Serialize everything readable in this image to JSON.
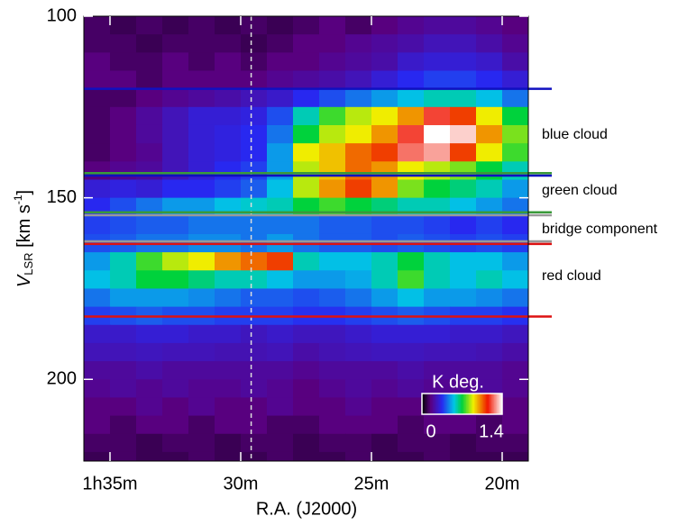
{
  "chart_data": {
    "type": "heatmap",
    "x_label": "R.A. (J2000)",
    "y_label": {
      "main": "V",
      "sub": "LSR",
      "unit": " [km s",
      "sup": "-1",
      "close": "]"
    },
    "xlim": [
      36,
      19
    ],
    "ylim": [
      100,
      222.5
    ],
    "xticks": [
      {
        "value": 35,
        "label": "1h35m"
      },
      {
        "value": 30,
        "label": "30m"
      },
      {
        "value": 25,
        "label": "25m"
      },
      {
        "value": 20,
        "label": "20m"
      }
    ],
    "yticks": [
      100,
      150,
      200
    ],
    "x_bins": [
      36,
      35,
      34,
      33,
      32,
      31,
      30,
      29,
      28,
      27,
      26,
      25,
      24,
      23,
      22,
      21,
      20,
      19
    ],
    "y_bins": [
      100,
      105,
      110,
      115,
      120,
      125,
      130,
      135,
      140,
      145,
      150,
      155,
      160,
      165,
      170,
      175,
      180,
      185,
      190,
      195,
      200,
      205,
      210,
      215,
      220,
      225
    ],
    "z": [
      [
        0.12,
        0.1,
        0.12,
        0.1,
        0.12,
        0.1,
        0.12,
        0.1,
        0.12,
        0.15,
        0.12,
        0.15,
        0.18,
        0.2,
        0.2,
        0.18,
        0.15
      ],
      [
        0.12,
        0.12,
        0.1,
        0.12,
        0.12,
        0.12,
        0.1,
        0.12,
        0.15,
        0.15,
        0.18,
        0.2,
        0.22,
        0.25,
        0.25,
        0.22,
        0.18
      ],
      [
        0.15,
        0.12,
        0.12,
        0.15,
        0.12,
        0.15,
        0.12,
        0.15,
        0.15,
        0.18,
        0.2,
        0.22,
        0.28,
        0.3,
        0.3,
        0.28,
        0.22
      ],
      [
        0.15,
        0.15,
        0.12,
        0.15,
        0.15,
        0.15,
        0.15,
        0.18,
        0.2,
        0.22,
        0.25,
        0.3,
        0.35,
        0.38,
        0.38,
        0.35,
        0.3
      ],
      [
        0.12,
        0.12,
        0.15,
        0.18,
        0.2,
        0.22,
        0.25,
        0.28,
        0.35,
        0.4,
        0.45,
        0.5,
        0.55,
        0.6,
        0.6,
        0.55,
        0.45
      ],
      [
        0.12,
        0.15,
        0.2,
        0.25,
        0.3,
        0.3,
        0.32,
        0.4,
        0.6,
        0.75,
        0.85,
        0.9,
        1.0,
        1.2,
        1.1,
        0.9,
        0.7
      ],
      [
        0.12,
        0.15,
        0.2,
        0.25,
        0.3,
        0.32,
        0.35,
        0.45,
        0.7,
        0.85,
        0.9,
        1.0,
        1.2,
        1.4,
        1.35,
        1.0,
        0.8
      ],
      [
        0.12,
        0.15,
        0.18,
        0.25,
        0.3,
        0.32,
        0.35,
        0.5,
        0.9,
        0.95,
        1.05,
        1.1,
        1.25,
        1.3,
        1.1,
        0.9,
        0.75
      ],
      [
        0.15,
        0.18,
        0.2,
        0.25,
        0.3,
        0.35,
        0.38,
        0.5,
        0.85,
        0.95,
        1.05,
        1.0,
        0.9,
        0.85,
        0.8,
        0.7,
        0.6
      ],
      [
        0.3,
        0.32,
        0.3,
        0.35,
        0.35,
        0.38,
        0.42,
        0.55,
        0.85,
        1.0,
        1.1,
        1.0,
        0.8,
        0.7,
        0.65,
        0.6,
        0.5
      ],
      [
        0.35,
        0.4,
        0.45,
        0.5,
        0.5,
        0.55,
        0.58,
        0.6,
        0.7,
        0.75,
        0.7,
        0.65,
        0.6,
        0.6,
        0.55,
        0.5,
        0.45
      ],
      [
        0.38,
        0.4,
        0.42,
        0.42,
        0.45,
        0.45,
        0.45,
        0.45,
        0.45,
        0.42,
        0.42,
        0.4,
        0.4,
        0.38,
        0.35,
        0.38,
        0.35
      ],
      [
        0.4,
        0.42,
        0.45,
        0.45,
        0.48,
        0.48,
        0.45,
        0.5,
        0.45,
        0.42,
        0.42,
        0.4,
        0.42,
        0.4,
        0.38,
        0.4,
        0.38
      ],
      [
        0.5,
        0.6,
        0.75,
        0.85,
        0.9,
        1.0,
        1.05,
        1.1,
        0.6,
        0.55,
        0.55,
        0.6,
        0.7,
        0.6,
        0.55,
        0.55,
        0.5
      ],
      [
        0.55,
        0.6,
        0.7,
        0.7,
        0.65,
        0.6,
        0.6,
        0.55,
        0.5,
        0.5,
        0.52,
        0.6,
        0.75,
        0.6,
        0.55,
        0.6,
        0.55
      ],
      [
        0.45,
        0.5,
        0.5,
        0.5,
        0.48,
        0.45,
        0.42,
        0.42,
        0.4,
        0.42,
        0.45,
        0.5,
        0.55,
        0.5,
        0.5,
        0.48,
        0.45
      ],
      [
        0.38,
        0.4,
        0.42,
        0.4,
        0.4,
        0.38,
        0.38,
        0.38,
        0.36,
        0.36,
        0.38,
        0.4,
        0.42,
        0.4,
        0.38,
        0.38,
        0.36
      ],
      [
        0.28,
        0.28,
        0.3,
        0.3,
        0.28,
        0.28,
        0.26,
        0.28,
        0.26,
        0.26,
        0.28,
        0.3,
        0.3,
        0.3,
        0.28,
        0.28,
        0.26
      ],
      [
        0.25,
        0.25,
        0.26,
        0.25,
        0.25,
        0.24,
        0.24,
        0.25,
        0.22,
        0.24,
        0.25,
        0.26,
        0.26,
        0.25,
        0.25,
        0.24,
        0.22
      ],
      [
        0.2,
        0.2,
        0.22,
        0.2,
        0.2,
        0.2,
        0.2,
        0.2,
        0.18,
        0.2,
        0.2,
        0.2,
        0.22,
        0.2,
        0.2,
        0.2,
        0.18
      ],
      [
        0.18,
        0.2,
        0.18,
        0.2,
        0.18,
        0.18,
        0.2,
        0.18,
        0.15,
        0.18,
        0.2,
        0.18,
        0.2,
        0.18,
        0.18,
        0.2,
        0.18
      ],
      [
        0.15,
        0.15,
        0.18,
        0.15,
        0.18,
        0.15,
        0.15,
        0.18,
        0.15,
        0.15,
        0.18,
        0.15,
        0.15,
        0.18,
        0.15,
        0.15,
        0.15
      ],
      [
        0.15,
        0.12,
        0.15,
        0.15,
        0.12,
        0.15,
        0.15,
        0.12,
        0.12,
        0.15,
        0.15,
        0.15,
        0.12,
        0.15,
        0.15,
        0.12,
        0.15
      ],
      [
        0.12,
        0.12,
        0.1,
        0.12,
        0.12,
        0.1,
        0.12,
        0.12,
        0.1,
        0.12,
        0.12,
        0.1,
        0.12,
        0.12,
        0.1,
        0.12,
        0.12
      ],
      [
        0.1,
        0.12,
        0.1,
        0.1,
        0.12,
        0.1,
        0.1,
        0.12,
        0.1,
        0.1,
        0.12,
        0.1,
        0.1,
        0.12,
        0.1,
        0.1,
        0.1
      ]
    ],
    "colorbar": {
      "label": "K deg.",
      "range": [
        0,
        1.4
      ],
      "ticks": [
        0,
        1.4
      ]
    },
    "marker_x": 29.6,
    "boundaries": [
      {
        "value": 120,
        "color": "#1010c0"
      },
      {
        "value": 143.2,
        "color": "#3a9a3a"
      },
      {
        "value": 143.9,
        "color": "#1010c0"
      },
      {
        "value": 154,
        "color": "#3a9a3a"
      },
      {
        "value": 154.8,
        "color": "#999999"
      },
      {
        "value": 162,
        "color": "#999999"
      },
      {
        "value": 162.7,
        "color": "#dd1111"
      },
      {
        "value": 182.7,
        "color": "#dd1111"
      }
    ],
    "components": [
      {
        "label": "blue cloud",
        "color": "#1a1aa8"
      },
      {
        "label": "green cloud",
        "color": "#2e9a2e"
      },
      {
        "label": "bridge component",
        "color": "#999999"
      },
      {
        "label": "red cloud",
        "color": "#dd1111"
      }
    ]
  }
}
